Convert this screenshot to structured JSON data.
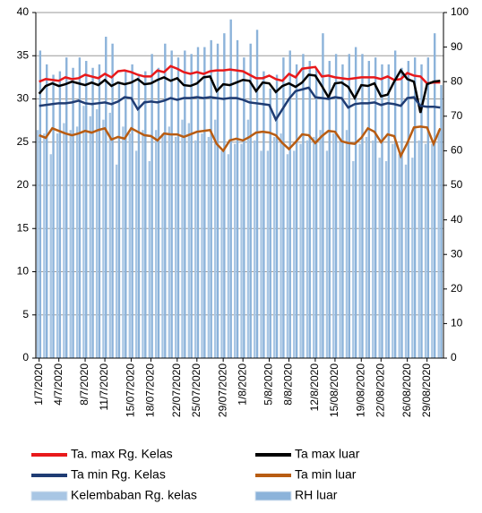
{
  "chart_data": {
    "type": "combo",
    "categories": [
      "1/7/2020",
      null,
      null,
      "4/7/2020",
      null,
      null,
      null,
      "8/7/2020",
      null,
      null,
      "11/7/2020",
      null,
      null,
      null,
      "15/07/2020",
      null,
      null,
      "18/07/2020",
      null,
      null,
      null,
      "22/07/2020",
      null,
      null,
      "25/07/2020",
      null,
      null,
      null,
      "29/07/2020",
      null,
      null,
      "1/8/2020",
      null,
      null,
      null,
      "5/8/2020",
      null,
      null,
      "8/8/2020",
      null,
      null,
      null,
      "12/8/2020",
      null,
      null,
      "15/08/2020",
      null,
      null,
      null,
      "19/08/2020",
      null,
      null,
      "22/08/2020",
      null,
      null,
      null,
      "26/08/2020",
      null,
      null,
      "29/08/2020",
      null,
      null
    ],
    "series": [
      {
        "name": "Ta. max Rg. Kelas",
        "type": "line",
        "color": "#e8191b",
        "values": [
          32.0,
          32.3,
          32.2,
          32.1,
          32.5,
          32.3,
          32.4,
          32.8,
          32.6,
          32.4,
          32.9,
          32.5,
          33.2,
          33.3,
          33.1,
          32.8,
          32.6,
          32.6,
          33.3,
          33.1,
          33.8,
          33.5,
          33.1,
          32.9,
          33.1,
          32.9,
          33.2,
          33.3,
          33.3,
          33.4,
          33.3,
          33.2,
          32.8,
          32.4,
          32.4,
          32.7,
          32.3,
          32.1,
          32.9,
          32.5,
          33.5,
          33.6,
          33.7,
          32.6,
          32.7,
          32.5,
          32.4,
          32.3,
          32.4,
          32.5,
          32.5,
          32.5,
          32.3,
          32.6,
          32.2,
          32.3,
          33.0,
          32.7,
          32.6,
          31.8,
          31.9,
          31.9
        ]
      },
      {
        "name": "Ta max luar",
        "type": "line",
        "color": "#000000",
        "values": [
          30.6,
          31.5,
          31.8,
          31.5,
          31.7,
          32.0,
          31.8,
          31.6,
          31.9,
          31.6,
          32.2,
          31.5,
          31.9,
          31.7,
          31.9,
          32.3,
          31.7,
          31.8,
          32.2,
          32.5,
          32.1,
          32.4,
          31.6,
          31.5,
          31.8,
          32.5,
          32.6,
          30.9,
          31.7,
          31.6,
          31.9,
          32.2,
          32.1,
          30.9,
          31.9,
          31.8,
          30.8,
          31.5,
          31.8,
          31.4,
          31.9,
          32.8,
          32.7,
          31.5,
          30.2,
          31.8,
          31.9,
          31.4,
          30.1,
          31.6,
          31.5,
          31.8,
          30.3,
          30.5,
          32.0,
          33.3,
          32.3,
          32.0,
          28.4,
          31.7,
          32.0,
          32.1
        ]
      },
      {
        "name": "Ta min Rg. Kelas",
        "type": "line",
        "color": "#1f3c73",
        "values": [
          29.2,
          29.3,
          29.4,
          29.5,
          29.5,
          29.6,
          29.8,
          29.5,
          29.4,
          29.5,
          29.6,
          29.4,
          29.7,
          30.2,
          30.1,
          28.8,
          29.6,
          29.7,
          29.6,
          29.8,
          30.1,
          29.9,
          30.1,
          30.1,
          30.2,
          30.1,
          30.2,
          30.1,
          30.0,
          30.1,
          30.1,
          29.9,
          29.6,
          29.5,
          29.4,
          29.3,
          27.6,
          28.8,
          30.0,
          30.9,
          31.1,
          31.3,
          30.2,
          30.1,
          30.0,
          30.2,
          30.1,
          29.0,
          29.4,
          29.5,
          29.5,
          29.6,
          29.3,
          29.5,
          29.4,
          29.2,
          30.1,
          30.2,
          29.2,
          29.1,
          29.1,
          29.0
        ]
      },
      {
        "name": "Ta min luar",
        "type": "line",
        "color": "#b85c12",
        "values": [
          25.8,
          25.5,
          26.6,
          26.3,
          26.0,
          25.8,
          26.0,
          26.3,
          26.1,
          26.4,
          26.6,
          25.3,
          25.6,
          25.4,
          26.6,
          26.2,
          25.8,
          25.7,
          25.2,
          26.0,
          25.9,
          25.9,
          25.6,
          25.9,
          26.2,
          26.3,
          26.4,
          24.8,
          24.0,
          25.2,
          25.4,
          25.2,
          25.6,
          26.1,
          26.2,
          26.1,
          25.8,
          24.9,
          24.2,
          25.0,
          25.9,
          25.8,
          24.9,
          25.7,
          26.3,
          26.2,
          25.1,
          24.9,
          24.8,
          25.5,
          26.6,
          26.2,
          25.0,
          25.9,
          25.7,
          23.4,
          24.9,
          26.7,
          26.8,
          26.7,
          24.8,
          26.6
        ]
      },
      {
        "name": "Kelembaban Rg. kelas",
        "type": "bar",
        "axis": "y2",
        "color": "#a8c6e4",
        "values": [
          66,
          65,
          59,
          65,
          68,
          66,
          67,
          73,
          70,
          72,
          69,
          71,
          56,
          67,
          65,
          60,
          66,
          57,
          66,
          65,
          67,
          64,
          69,
          68,
          63,
          65,
          64,
          69,
          60,
          59,
          62,
          62,
          69,
          63,
          60,
          60,
          64,
          65,
          59,
          60,
          62,
          63,
          64,
          66,
          60,
          65,
          63,
          66,
          57,
          62,
          64,
          63,
          58,
          57,
          62,
          59,
          56,
          58,
          63,
          62,
          62,
          66
        ]
      },
      {
        "name": "RH luar",
        "type": "bar",
        "axis": "y2",
        "color": "#8cb3da",
        "values": [
          89,
          85,
          82,
          83,
          87,
          84,
          87,
          86,
          84,
          85,
          93,
          91,
          80,
          83,
          85,
          82,
          83,
          88,
          84,
          91,
          89,
          87,
          89,
          88,
          90,
          90,
          92,
          91,
          94,
          98,
          92,
          87,
          91,
          95,
          83,
          78,
          82,
          87,
          89,
          85,
          88,
          86,
          84,
          94,
          86,
          88,
          85,
          88,
          90,
          88,
          86,
          87,
          85,
          85,
          89,
          84,
          86,
          87,
          85,
          87,
          94,
          79
        ]
      }
    ],
    "ylim": [
      0,
      40
    ],
    "yticks": [
      0,
      5,
      10,
      15,
      20,
      25,
      30,
      35,
      40
    ],
    "y2lim": [
      0,
      100
    ],
    "y2ticks": [
      0,
      10,
      20,
      30,
      40,
      50,
      60,
      70,
      80,
      90,
      100
    ],
    "grid": true
  }
}
